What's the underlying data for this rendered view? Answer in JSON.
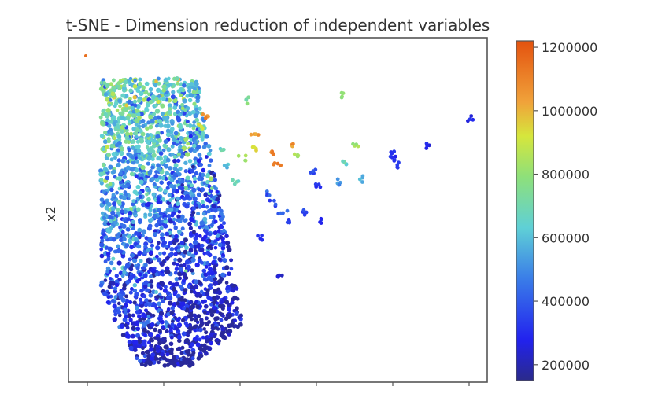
{
  "chart_data": {
    "type": "scatter",
    "title": "t-SNE - Dimension reduction of independent variables",
    "xlabel": "",
    "ylabel": "x2",
    "x_tick_labels": [
      "",
      "",
      "",
      "",
      "",
      ""
    ],
    "colorbar": {
      "min": 150000,
      "max": 1220000,
      "ticks": [
        200000,
        400000,
        600000,
        800000,
        1000000,
        1200000
      ],
      "tick_labels": [
        "200000",
        "400000",
        "600000",
        "800000",
        "1000000",
        "1200000"
      ],
      "colormap": "jet"
    },
    "grid": false,
    "legend": "none",
    "colors": {
      "axis": "#555555",
      "text": "#333333"
    }
  }
}
